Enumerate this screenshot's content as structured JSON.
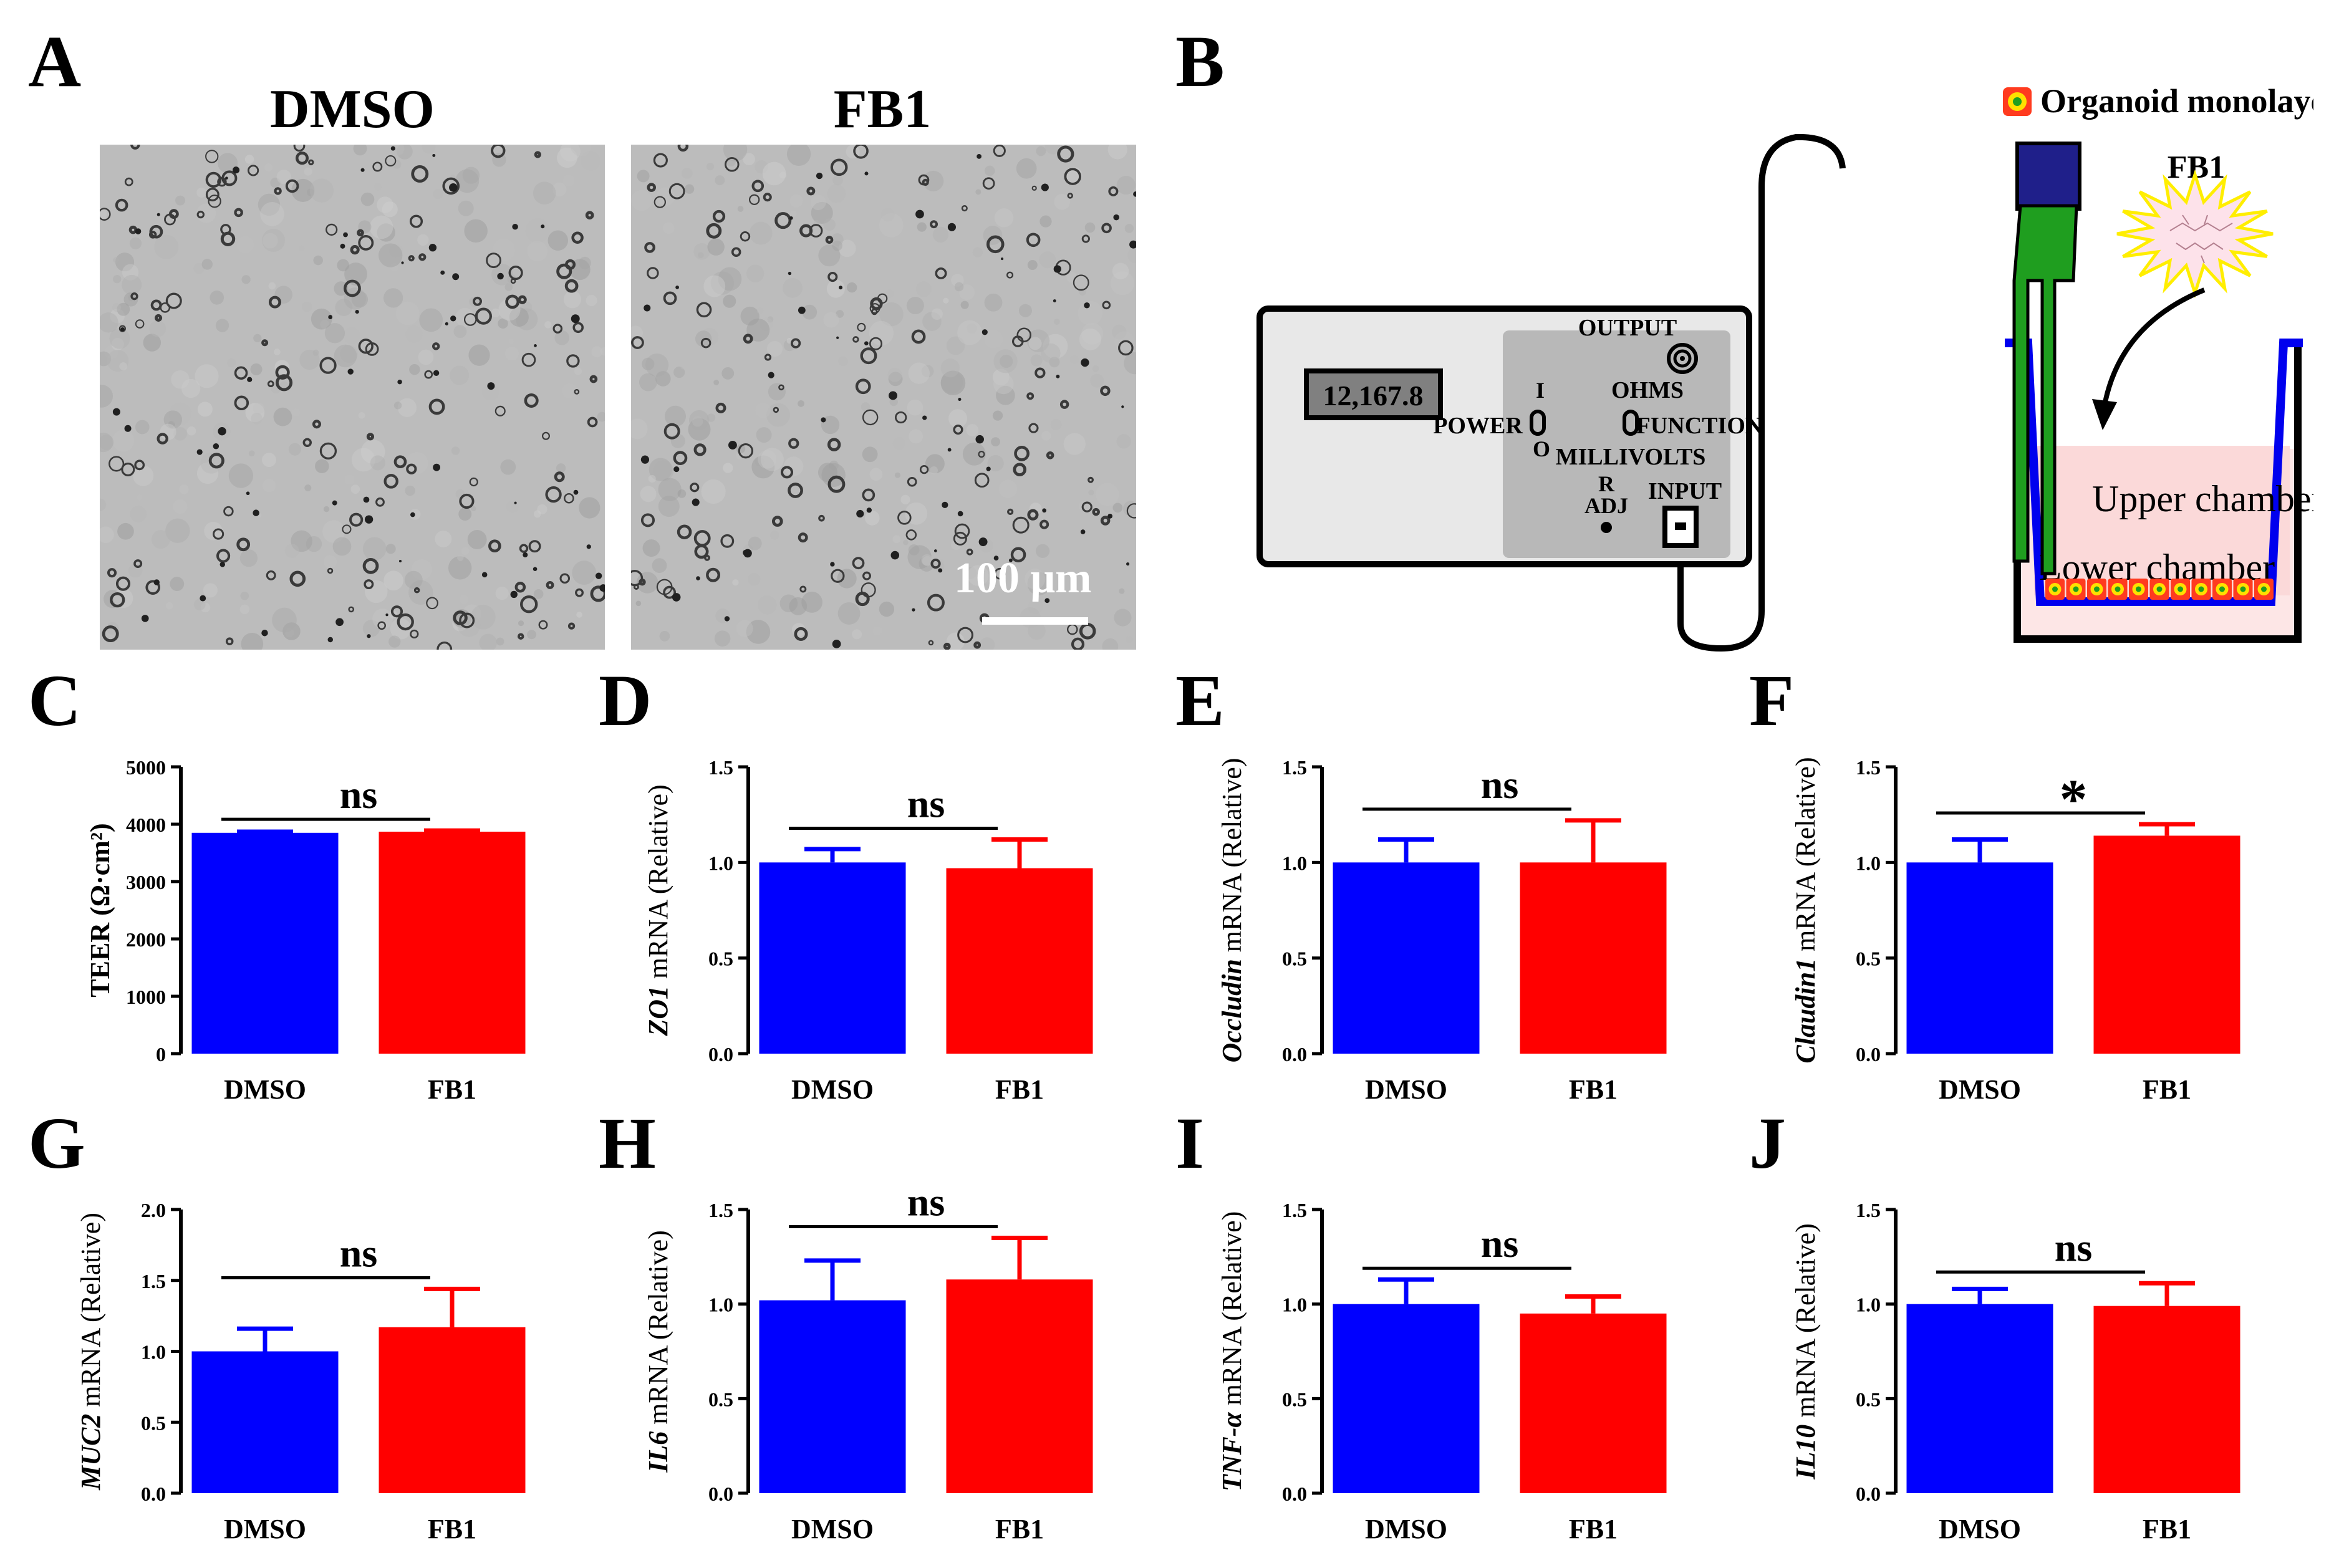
{
  "panels": {
    "a": "A",
    "b": "B",
    "c": "C",
    "d": "D",
    "e": "E",
    "f": "F",
    "g": "G",
    "h": "H",
    "i": "I",
    "j": "J"
  },
  "panel_a": {
    "left_title": "DMSO",
    "right_title": "FB1",
    "scale_bar_label": "100 μm"
  },
  "panel_b": {
    "legend_label": "Organoid monolayers",
    "compound_label": "FB1",
    "display_value": "12,167.8",
    "labels": {
      "output": "OUTPUT",
      "power": "POWER",
      "power_on": "I",
      "power_off": "O",
      "ohms": "OHMS",
      "function": "FUNCTION",
      "millivolts": "MILLIVOLTS",
      "r": "R",
      "adj": "ADJ",
      "input": "INPUT"
    },
    "upper_chamber": "Upper chamber",
    "lower_chamber": "Lower chamber"
  },
  "colors": {
    "dmso": "#0000ff",
    "fb1": "#ff0000"
  },
  "chart_data": [
    {
      "id": "C",
      "type": "bar",
      "categories": [
        "DMSO",
        "FB1"
      ],
      "values": [
        3850,
        3870
      ],
      "errors": [
        20,
        20
      ],
      "ylabel": "TEER (Ω·cm²)",
      "ylim": [
        0,
        5000
      ],
      "yticks": [
        "0",
        "1000",
        "2000",
        "3000",
        "4000",
        "5000"
      ],
      "significance": "ns"
    },
    {
      "id": "D",
      "type": "bar",
      "categories": [
        "DMSO",
        "FB1"
      ],
      "values": [
        1.0,
        0.97
      ],
      "errors": [
        0.07,
        0.15
      ],
      "ylabel_gene": "ZO1",
      "ylabel": " mRNA (Relative)",
      "ylim": [
        0,
        1.5
      ],
      "yticks": [
        "0.0",
        "0.5",
        "1.0",
        "1.5"
      ],
      "significance": "ns"
    },
    {
      "id": "E",
      "type": "bar",
      "categories": [
        "DMSO",
        "FB1"
      ],
      "values": [
        1.0,
        1.0
      ],
      "errors": [
        0.12,
        0.22
      ],
      "ylabel_gene": "Occludin",
      "ylabel": " mRNA (Relative)",
      "ylim": [
        0,
        1.5
      ],
      "yticks": [
        "0.0",
        "0.5",
        "1.0",
        "1.5"
      ],
      "significance": "ns"
    },
    {
      "id": "F",
      "type": "bar",
      "categories": [
        "DMSO",
        "FB1"
      ],
      "values": [
        1.0,
        1.14
      ],
      "errors": [
        0.12,
        0.06
      ],
      "ylabel_gene": "Claudin1",
      "ylabel": " mRNA (Relative)",
      "ylim": [
        0,
        1.5
      ],
      "yticks": [
        "0.0",
        "0.5",
        "1.0",
        "1.5"
      ],
      "significance": "*"
    },
    {
      "id": "G",
      "type": "bar",
      "categories": [
        "DMSO",
        "FB1"
      ],
      "values": [
        1.0,
        1.17
      ],
      "errors": [
        0.16,
        0.27
      ],
      "ylabel_gene": "MUC2",
      "ylabel": " mRNA (Relative)",
      "ylim": [
        0,
        2.0
      ],
      "yticks": [
        "0.0",
        "0.5",
        "1.0",
        "1.5",
        "2.0"
      ],
      "significance": "ns"
    },
    {
      "id": "H",
      "type": "bar",
      "categories": [
        "DMSO",
        "FB1"
      ],
      "values": [
        1.02,
        1.13
      ],
      "errors": [
        0.21,
        0.22
      ],
      "ylabel_gene": "IL6",
      "ylabel": " mRNA (Relative)",
      "ylim": [
        0,
        1.5
      ],
      "yticks": [
        "0.0",
        "0.5",
        "1.0",
        "1.5"
      ],
      "significance": "ns"
    },
    {
      "id": "I",
      "type": "bar",
      "categories": [
        "DMSO",
        "FB1"
      ],
      "values": [
        1.0,
        0.95
      ],
      "errors": [
        0.13,
        0.09
      ],
      "ylabel_gene": "TNF-α",
      "ylabel": " mRNA (Relative)",
      "ylim": [
        0,
        1.5
      ],
      "yticks": [
        "0.0",
        "0.5",
        "1.0",
        "1.5"
      ],
      "significance": "ns"
    },
    {
      "id": "J",
      "type": "bar",
      "categories": [
        "DMSO",
        "FB1"
      ],
      "values": [
        1.0,
        0.99
      ],
      "errors": [
        0.08,
        0.12
      ],
      "ylabel_gene": "IL10",
      "ylabel": " mRNA (Relative)",
      "ylim": [
        0,
        1.5
      ],
      "yticks": [
        "0.0",
        "0.5",
        "1.0",
        "1.5"
      ],
      "significance": "ns"
    }
  ]
}
